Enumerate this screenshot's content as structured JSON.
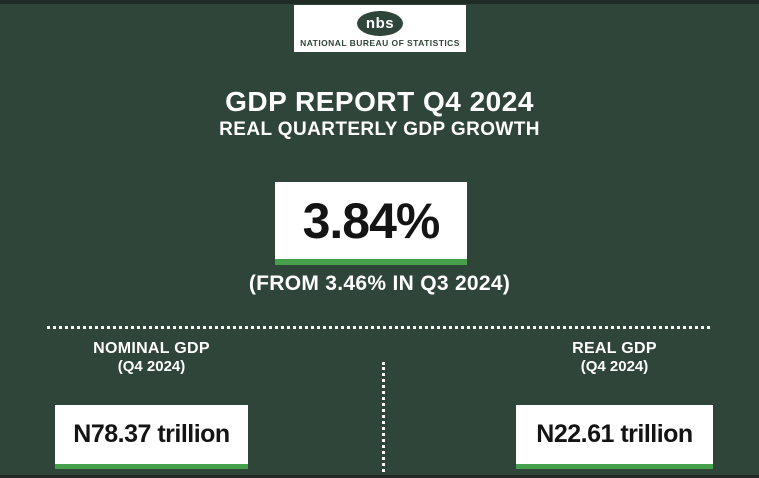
{
  "colors": {
    "background": "#2F4539",
    "edge_strip": "#1F2B24",
    "card_white": "#FFFFFF",
    "accent_green": "#46A04B",
    "text_dark": "#141414",
    "text_light": "#FFFFFF"
  },
  "logo": {
    "brand": "nbs",
    "org_name": "NATIONAL BUREAU OF STATISTICS"
  },
  "header": {
    "title": "GDP REPORT Q4 2024",
    "subtitle": "REAL QUARTERLY GDP GROWTH"
  },
  "highlight": {
    "value": "3.84%",
    "comparison": "(FROM 3.46% IN Q3 2024)"
  },
  "sections": {
    "nominal": {
      "label": "NOMINAL GDP",
      "period": "(Q4 2024)",
      "value": "N78.37 trillion"
    },
    "real": {
      "label": "REAL GDP",
      "period": "(Q4 2024)",
      "value": "N22.61 trillion"
    }
  },
  "chart_data": {
    "type": "table",
    "title": "GDP REPORT Q4 2024",
    "subtitle": "REAL QUARTERLY GDP GROWTH",
    "metrics": [
      {
        "label": "Real quarterly GDP growth, Q4 2024",
        "value": 3.84,
        "unit": "%"
      },
      {
        "label": "Real quarterly GDP growth, Q3 2024",
        "value": 3.46,
        "unit": "%"
      },
      {
        "label": "Nominal GDP, Q4 2024",
        "value": 78.37,
        "unit": "N trillion"
      },
      {
        "label": "Real GDP, Q4 2024",
        "value": 22.61,
        "unit": "N trillion"
      }
    ]
  }
}
